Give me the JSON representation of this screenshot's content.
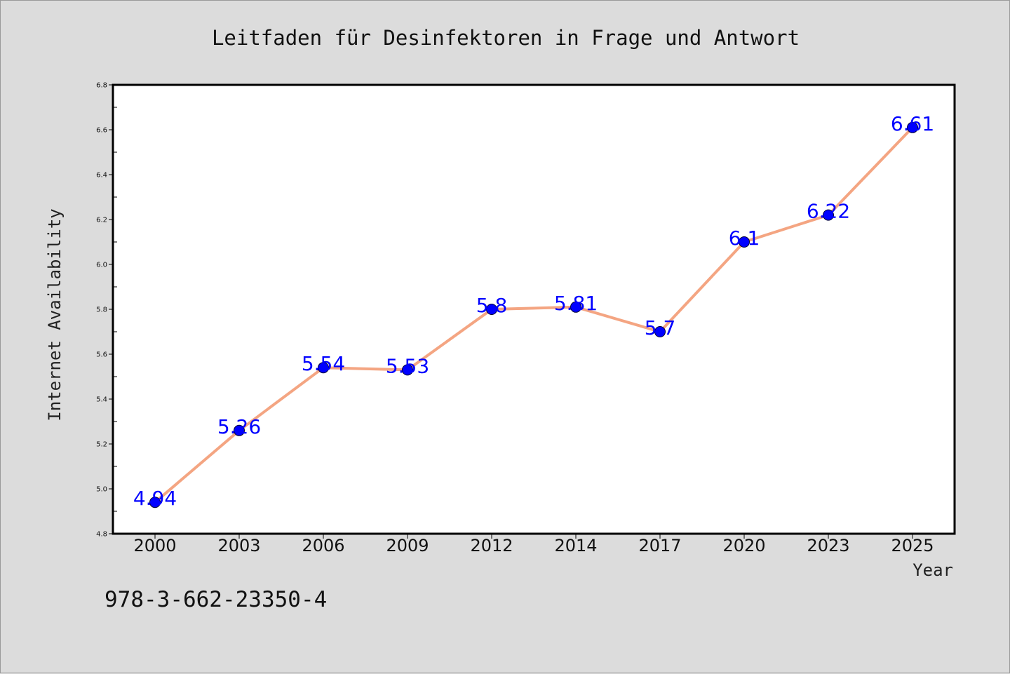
{
  "chart_data": {
    "type": "line",
    "title": "Leitfaden für Desinfektoren in Frage und Antwort",
    "xlabel": "Year",
    "ylabel": "Internet Availability",
    "categories": [
      "2000",
      "2003",
      "2006",
      "2009",
      "2012",
      "2014",
      "2017",
      "2020",
      "2023",
      "2025"
    ],
    "series": [
      {
        "values": [
          4.94,
          5.26,
          5.54,
          5.53,
          5.8,
          5.81,
          5.7,
          6.1,
          6.22,
          6.61
        ],
        "data_labels": [
          "4.94",
          "5.26",
          "5.54",
          "5.53",
          "5.8",
          "5.81",
          "5.7",
          "6.1",
          "6.22",
          "6.61"
        ]
      }
    ],
    "ylim": [
      4.8,
      6.8
    ],
    "yticks": [
      "4.8",
      "5.0",
      "5.2",
      "5.4",
      "5.6",
      "5.8",
      "6.0",
      "6.2",
      "6.4",
      "6.6",
      "6.8"
    ],
    "grid": false,
    "legend": "none",
    "colors": {
      "line": "#f4a582",
      "marker": "#0000ff",
      "data_label": "#0000ff",
      "background": "#dcdcdc",
      "plot_background": "#ffffff"
    }
  },
  "footer": {
    "isbn": "978-3-662-23350-4"
  }
}
